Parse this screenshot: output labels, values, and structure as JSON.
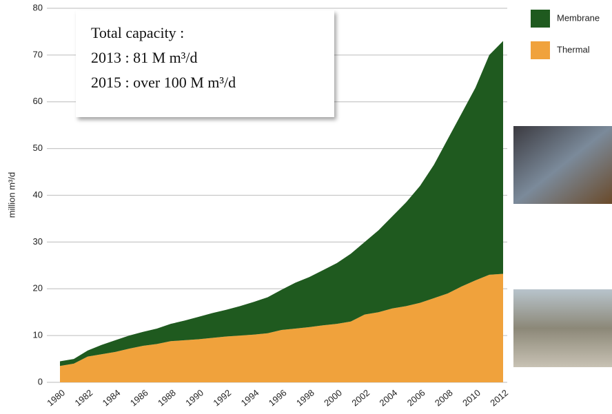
{
  "chart_data": {
    "type": "stacked-area",
    "y_label": "million m³/d",
    "annotations": [
      "Total capacity :",
      "2013 : 81 M m³/d",
      "2015 : over 100 M m³/d"
    ],
    "x": [
      1980,
      1981,
      1982,
      1983,
      1984,
      1985,
      1986,
      1987,
      1988,
      1989,
      1990,
      1991,
      1992,
      1993,
      1994,
      1995,
      1996,
      1997,
      1998,
      1999,
      2000,
      2001,
      2002,
      2003,
      2004,
      2005,
      2006,
      2007,
      2008,
      2009,
      2010,
      2011,
      2012
    ],
    "xlim": [
      1980,
      2012
    ],
    "xticks": [
      1980,
      1982,
      1984,
      1986,
      1988,
      1990,
      1992,
      1994,
      1996,
      1998,
      2000,
      2002,
      2004,
      2006,
      2008,
      2010,
      2012
    ],
    "ylim": [
      0,
      80
    ],
    "yticks": [
      0,
      10,
      20,
      30,
      40,
      50,
      60,
      70,
      80
    ],
    "grid": true,
    "legend": "top-right",
    "series": [
      {
        "name": "Thermal",
        "color": "#f0a23c",
        "values": [
          3.5,
          4,
          5.5,
          6,
          6.5,
          7.2,
          7.8,
          8.2,
          8.8,
          9,
          9.2,
          9.5,
          9.8,
          10,
          10.2,
          10.5,
          11.2,
          11.5,
          11.8,
          12.2,
          12.5,
          13,
          14.5,
          15,
          15.8,
          16.3,
          17,
          18,
          19,
          20.5,
          21.8,
          23,
          23.2
        ]
      },
      {
        "name": "Membrane",
        "color": "#1f5a1f",
        "values": [
          1.0,
          1.0,
          1.3,
          2.0,
          2.5,
          2.8,
          3.0,
          3.3,
          3.7,
          4.2,
          4.8,
          5.3,
          5.7,
          6.3,
          7.0,
          7.7,
          8.6,
          9.8,
          10.7,
          11.8,
          13.0,
          14.5,
          15.5,
          17.5,
          19.7,
          22.2,
          25.0,
          28.5,
          33.0,
          37.0,
          41.2,
          47.0,
          49.8
        ]
      }
    ]
  }
}
